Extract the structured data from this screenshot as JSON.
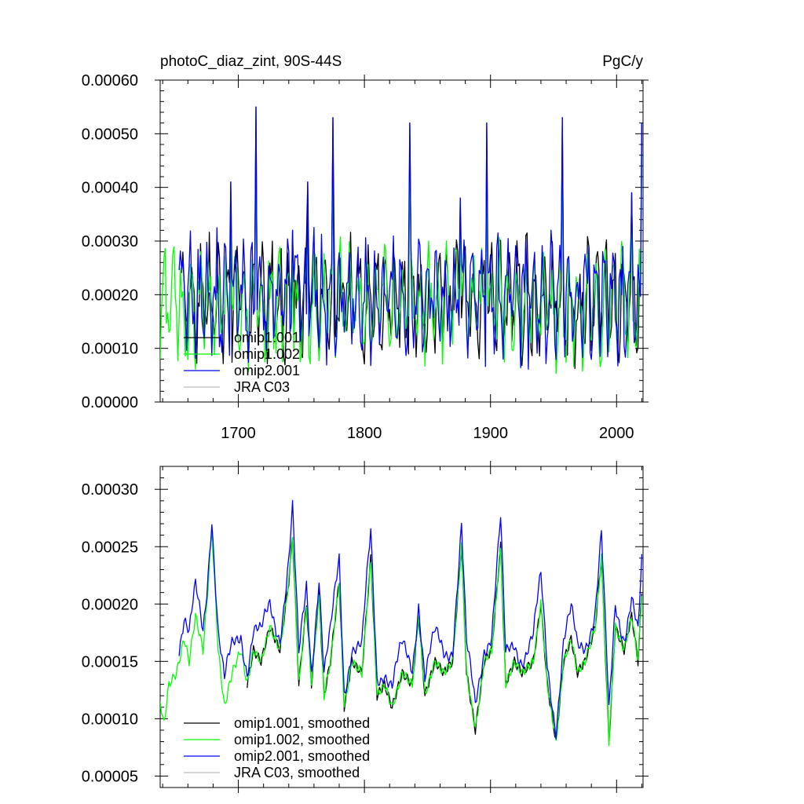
{
  "figure": {
    "title_left": "photoC_diaz_zint, 90S-44S",
    "title_right": "PgC/y"
  },
  "chart_data": [
    {
      "type": "line",
      "title": "photoC_diaz_zint, 90S-44S",
      "units": "PgC/y",
      "xlim": [
        1638,
        2021
      ],
      "ylim": [
        0.0,
        0.0006
      ],
      "x_ticks": [
        1700,
        1800,
        1900,
        2000
      ],
      "x_tick_labels": [
        "1700",
        "1800",
        "1900",
        "2000"
      ],
      "y_ticks": [
        0.0,
        0.0001,
        0.0002,
        0.0003,
        0.0004,
        0.0005,
        0.0006
      ],
      "y_tick_labels": [
        "0.00000",
        "0.00010",
        "0.00020",
        "0.00030",
        "0.00040",
        "0.00050",
        "0.00060"
      ],
      "x_start": 1638,
      "x_step": 1,
      "n": 383,
      "wave": {
        "min": 5e-05,
        "max": 0.00031,
        "seed": 7
      },
      "spikes": [
        [
          1694,
          0.00041
        ],
        [
          1714,
          0.00055
        ],
        [
          1743,
          0.00032
        ],
        [
          1755,
          0.00041
        ],
        [
          1775,
          0.00053
        ],
        [
          1836,
          0.00052
        ],
        [
          1876,
          0.00038
        ],
        [
          1897,
          0.00052
        ],
        [
          1957,
          0.00053
        ],
        [
          1978,
          0.00029
        ],
        [
          2012,
          0.00039
        ],
        [
          2020,
          0.00052
        ]
      ],
      "series": [
        {
          "name": "omip1.001",
          "color": "#000000",
          "x_from": 1655,
          "offset": 2e-05
        },
        {
          "name": "omip1.002",
          "color": "#00ff00",
          "x_from": 1638,
          "offset": 0.0
        },
        {
          "name": "omip2.001",
          "color": "#0000ff",
          "x_from": 1653,
          "offset": 3e-05
        },
        {
          "name": "JRA C03",
          "color": "#bbbbbb",
          "x_from": 0,
          "offset": 0.0
        }
      ],
      "legend_position": "lower-left"
    },
    {
      "type": "line",
      "title": "",
      "xlim": [
        1638,
        2021
      ],
      "ylim": [
        4e-05,
        0.00032
      ],
      "x_ticks": [
        1700,
        1800,
        1900,
        2000
      ],
      "x_tick_labels": [
        "",
        "",
        "",
        ""
      ],
      "y_ticks": [
        5e-05,
        0.0001,
        0.00015,
        0.0002,
        0.00025,
        0.0003
      ],
      "y_tick_labels": [
        "0.00005",
        "0.00010",
        "0.00015",
        "0.00020",
        "0.00025",
        "0.00030"
      ],
      "x_start": 1638,
      "x_step": 1,
      "n": 383,
      "keys": [
        [
          1638,
          0.000115
        ],
        [
          1641,
          9.5e-05
        ],
        [
          1645,
          0.00013
        ],
        [
          1651,
          0.00014
        ],
        [
          1657,
          0.00017
        ],
        [
          1661,
          0.00015
        ],
        [
          1666,
          0.00019
        ],
        [
          1672,
          0.00016
        ],
        [
          1675,
          0.0002
        ],
        [
          1679,
          0.000265
        ],
        [
          1684,
          0.00016
        ],
        [
          1689,
          0.00011
        ],
        [
          1695,
          0.00014
        ],
        [
          1702,
          0.00016
        ],
        [
          1707,
          0.00013
        ],
        [
          1712,
          0.00016
        ],
        [
          1718,
          0.00015
        ],
        [
          1725,
          0.00018
        ],
        [
          1733,
          0.00016
        ],
        [
          1740,
          0.00022
        ],
        [
          1743,
          0.00026
        ],
        [
          1748,
          0.00013
        ],
        [
          1754,
          0.0002
        ],
        [
          1758,
          0.00013
        ],
        [
          1764,
          0.00021
        ],
        [
          1768,
          0.00012
        ],
        [
          1773,
          0.00015
        ],
        [
          1780,
          0.00022
        ],
        [
          1784,
          0.00011
        ],
        [
          1790,
          0.00015
        ],
        [
          1798,
          0.00014
        ],
        [
          1805,
          0.00024
        ],
        [
          1810,
          0.00012
        ],
        [
          1816,
          0.00013
        ],
        [
          1822,
          0.00011
        ],
        [
          1830,
          0.00014
        ],
        [
          1838,
          0.00013
        ],
        [
          1843,
          0.00019
        ],
        [
          1848,
          0.00012
        ],
        [
          1856,
          0.00015
        ],
        [
          1863,
          0.00014
        ],
        [
          1870,
          0.00015
        ],
        [
          1877,
          0.00025
        ],
        [
          1881,
          0.00014
        ],
        [
          1888,
          9e-05
        ],
        [
          1895,
          0.00015
        ],
        [
          1901,
          0.00016
        ],
        [
          1908,
          0.00025
        ],
        [
          1912,
          0.00013
        ],
        [
          1919,
          0.00015
        ],
        [
          1925,
          0.00014
        ],
        [
          1934,
          0.00015
        ],
        [
          1940,
          0.0002
        ],
        [
          1945,
          0.00013
        ],
        [
          1952,
          8e-05
        ],
        [
          1958,
          0.00015
        ],
        [
          1964,
          0.00017
        ],
        [
          1969,
          0.00014
        ],
        [
          1975,
          0.00015
        ],
        [
          1983,
          0.00018
        ],
        [
          1988,
          0.00024
        ],
        [
          1994,
          8e-05
        ],
        [
          1999,
          0.00018
        ],
        [
          2006,
          0.00016
        ],
        [
          2012,
          0.00019
        ],
        [
          2017,
          0.00015
        ],
        [
          2020,
          0.00021
        ]
      ],
      "series": [
        {
          "name": "omip1.001, smoothed",
          "color": "#000000",
          "x_from": 1707,
          "offset": 0.0
        },
        {
          "name": "omip1.002, smoothed",
          "color": "#00ff00",
          "x_from": 1638,
          "offset": 0.0
        },
        {
          "name": "omip2.001, smoothed",
          "color": "#0000ff",
          "x_from": 1653,
          "offset": 3e-05
        },
        {
          "name": "JRA C03, smoothed",
          "color": "#bbbbbb",
          "x_from": 0,
          "offset": 0.0
        }
      ],
      "legend_position": "lower-left"
    }
  ]
}
